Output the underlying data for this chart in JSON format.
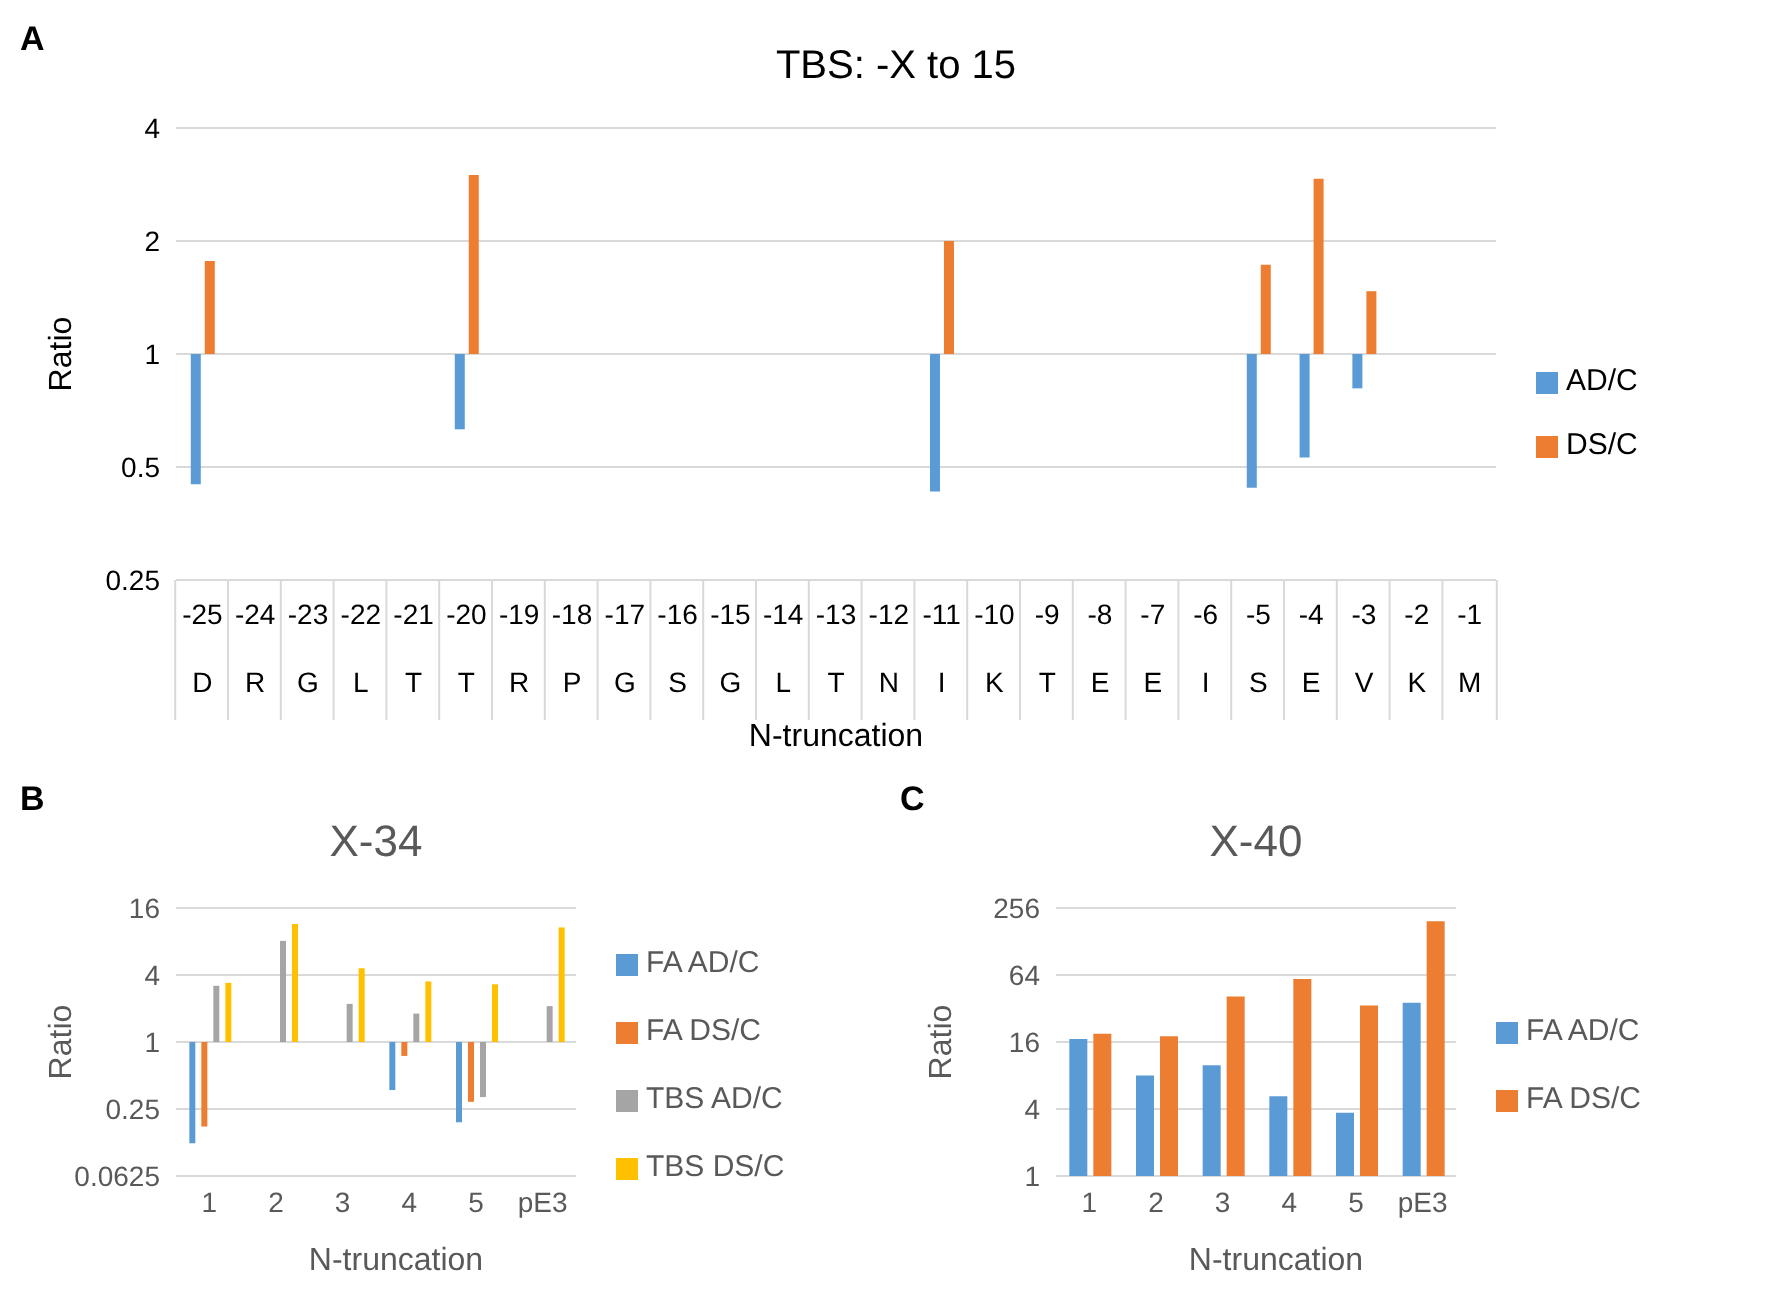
{
  "chart_data": [
    {
      "type": "bar",
      "title": "TBS: -X to 15",
      "xlabel": "N-truncation",
      "ylabel": "Ratio",
      "log": true,
      "grid": "y",
      "legend": "right",
      "categories": [
        "-25",
        "-24",
        "-23",
        "-22",
        "-21",
        "-20",
        "-19",
        "-18",
        "-17",
        "-16",
        "-15",
        "-14",
        "-13",
        "-12",
        "-11",
        "-10",
        "-9",
        "-8",
        "-7",
        "-6",
        "-5",
        "-4",
        "-3",
        "-2",
        "-1"
      ],
      "series": [
        {
          "name": "AD/C",
          "color": "#5b9bd5",
          "base": [
            1,
            null,
            null,
            null,
            null,
            1,
            null,
            null,
            null,
            null,
            null,
            null,
            null,
            null,
            1,
            null,
            null,
            null,
            null,
            null,
            1,
            1,
            1,
            null,
            null
          ],
          "values": [
            -0.55,
            null,
            null,
            null,
            null,
            -0.37,
            null,
            null,
            null,
            null,
            null,
            null,
            null,
            null,
            -0.57,
            null,
            null,
            null,
            null,
            null,
            -0.56,
            -0.47,
            -0.19,
            null,
            null
          ]
        },
        {
          "name": "DS/C",
          "color": "#ed7d31",
          "base": [
            1,
            null,
            null,
            null,
            null,
            1,
            null,
            null,
            null,
            null,
            null,
            null,
            null,
            null,
            1,
            null,
            null,
            null,
            null,
            null,
            1,
            1,
            1,
            null,
            null
          ],
          "values": [
            0.77,
            null,
            null,
            null,
            null,
            2.0,
            null,
            null,
            null,
            null,
            null,
            null,
            null,
            null,
            1.0,
            null,
            null,
            null,
            null,
            null,
            0.73,
            1.93,
            0.47,
            null,
            null
          ]
        }
      ],
      "ylim": [
        0.25,
        4
      ],
      "yticks": [
        0.25,
        0.5,
        1,
        2,
        4
      ],
      "annotations": [
        "A",
        "D",
        "R",
        "G",
        "L",
        "T",
        "T",
        "R",
        "P",
        "G",
        "S",
        "G",
        "L",
        "T",
        "N",
        "I",
        "K",
        "T",
        "E",
        "E",
        "I",
        "S",
        "E",
        "V",
        "K",
        "M"
      ]
    },
    {
      "type": "bar",
      "title": "X-34",
      "xlabel": "N-truncation",
      "ylabel": "Ratio",
      "log": true,
      "grid": "y",
      "legend": "right",
      "categories": [
        "1",
        "2",
        "3",
        "4",
        "5",
        "pE3"
      ],
      "series": [
        {
          "name": "FA AD/C",
          "color": "#5b9bd5",
          "base": [
            1,
            null,
            null,
            1,
            1,
            null
          ],
          "values": [
            -0.877,
            null,
            null,
            -0.63,
            -0.81,
            null
          ]
        },
        {
          "name": "FA DS/C",
          "color": "#ed7d31",
          "base": [
            1,
            null,
            null,
            1,
            1,
            null
          ],
          "values": [
            -0.826,
            null,
            null,
            -0.25,
            -0.71,
            null
          ]
        },
        {
          "name": "TBS AD/C",
          "color": "#a5a5a5",
          "base": [
            1,
            1,
            1,
            1,
            1,
            1
          ],
          "values": [
            2.2,
            7.1,
            1.2,
            0.8,
            -0.68,
            1.1
          ]
        },
        {
          "name": "TBS DS/C",
          "color": "#ffc000",
          "base": [
            1,
            1,
            1,
            1,
            1,
            1
          ],
          "values": [
            2.4,
            10.5,
            3.6,
            2.5,
            2.3,
            9.7
          ]
        }
      ],
      "ylim": [
        0.0625,
        16
      ],
      "yticks": [
        0.0625,
        0.25,
        1,
        4,
        16
      ],
      "annotations": [
        "B"
      ]
    },
    {
      "type": "bar",
      "title": "X-40",
      "xlabel": "N-truncation",
      "ylabel": "Ratio",
      "log": true,
      "grid": "y",
      "legend": "right",
      "categories": [
        "1",
        "2",
        "3",
        "4",
        "5",
        "pE3"
      ],
      "series": [
        {
          "name": "FA AD/C",
          "color": "#5b9bd5",
          "base": [
            1,
            1,
            1,
            1,
            1,
            1
          ],
          "values": [
            16,
            7,
            8.9,
            4.2,
            2.7,
            35
          ]
        },
        {
          "name": "FA DS/C",
          "color": "#ed7d31",
          "base": [
            1,
            1,
            1,
            1,
            1,
            1
          ],
          "values": [
            18,
            17,
            40,
            58,
            33,
            194
          ]
        }
      ],
      "ylim": [
        1,
        256
      ],
      "yticks": [
        1,
        4,
        16,
        64,
        256
      ],
      "annotations": [
        "C"
      ]
    }
  ]
}
